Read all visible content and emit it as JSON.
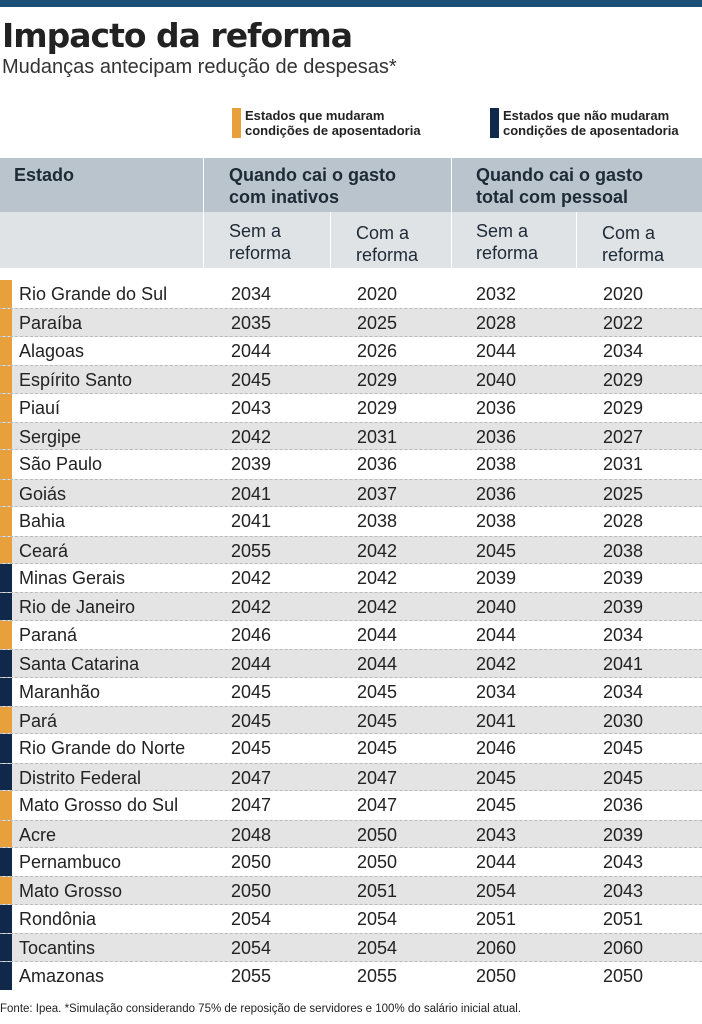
{
  "header": {
    "title": "Impacto da reforma",
    "subtitle": "Mudanças antecipam redução de despesas*"
  },
  "legend": [
    {
      "label": "Estados que mudaram condições de aposentadoria",
      "color": "#e8a03c"
    },
    {
      "label": "Estados que não mudaram condições de aposentadoria",
      "color": "#10294a"
    }
  ],
  "table": {
    "columns": [
      "Estado",
      "Quando cai o gasto com inativos",
      "Quando cai o gasto total com pessoal"
    ],
    "subcolumns": [
      "Sem a reforma",
      "Com a reforma",
      "Sem a reforma",
      "Com a reforma"
    ],
    "rows": [
      {
        "state": "Rio Grande do Sul",
        "color": "#e8a03c",
        "values": [
          2034,
          2020,
          2032,
          2020
        ]
      },
      {
        "state": "Paraíba",
        "color": "#e8a03c",
        "values": [
          2035,
          2025,
          2028,
          2022
        ]
      },
      {
        "state": "Alagoas",
        "color": "#e8a03c",
        "values": [
          2044,
          2026,
          2044,
          2034
        ]
      },
      {
        "state": "Espírito Santo",
        "color": "#e8a03c",
        "values": [
          2045,
          2029,
          2040,
          2029
        ]
      },
      {
        "state": "Piauí",
        "color": "#e8a03c",
        "values": [
          2043,
          2029,
          2036,
          2029
        ]
      },
      {
        "state": "Sergipe",
        "color": "#e8a03c",
        "values": [
          2042,
          2031,
          2036,
          2027
        ]
      },
      {
        "state": "São Paulo",
        "color": "#e8a03c",
        "values": [
          2039,
          2036,
          2038,
          2031
        ]
      },
      {
        "state": "Goiás",
        "color": "#e8a03c",
        "values": [
          2041,
          2037,
          2036,
          2025
        ]
      },
      {
        "state": "Bahia",
        "color": "#e8a03c",
        "values": [
          2041,
          2038,
          2038,
          2028
        ]
      },
      {
        "state": "Ceará",
        "color": "#e8a03c",
        "values": [
          2055,
          2042,
          2045,
          2038
        ]
      },
      {
        "state": "Minas Gerais",
        "color": "#10294a",
        "values": [
          2042,
          2042,
          2039,
          2039
        ]
      },
      {
        "state": "Rio de Janeiro",
        "color": "#10294a",
        "values": [
          2042,
          2042,
          2040,
          2039
        ]
      },
      {
        "state": "Paraná",
        "color": "#e8a03c",
        "values": [
          2046,
          2044,
          2044,
          2034
        ]
      },
      {
        "state": "Santa Catarina",
        "color": "#10294a",
        "values": [
          2044,
          2044,
          2042,
          2041
        ]
      },
      {
        "state": "Maranhão",
        "color": "#10294a",
        "values": [
          2045,
          2045,
          2034,
          2034
        ]
      },
      {
        "state": "Pará",
        "color": "#e8a03c",
        "values": [
          2045,
          2045,
          2041,
          2030
        ]
      },
      {
        "state": "Rio Grande do Norte",
        "color": "#10294a",
        "values": [
          2045,
          2045,
          2046,
          2045
        ]
      },
      {
        "state": "Distrito Federal",
        "color": "#10294a",
        "values": [
          2047,
          2047,
          2045,
          2045
        ]
      },
      {
        "state": "Mato Grosso do Sul",
        "color": "#e8a03c",
        "values": [
          2047,
          2047,
          2045,
          2036
        ]
      },
      {
        "state": "Acre",
        "color": "#e8a03c",
        "values": [
          2048,
          2050,
          2043,
          2039
        ]
      },
      {
        "state": "Pernambuco",
        "color": "#10294a",
        "values": [
          2050,
          2050,
          2044,
          2043
        ]
      },
      {
        "state": "Mato Grosso",
        "color": "#e8a03c",
        "values": [
          2050,
          2051,
          2054,
          2043
        ]
      },
      {
        "state": "Rondônia",
        "color": "#10294a",
        "values": [
          2054,
          2054,
          2051,
          2051
        ]
      },
      {
        "state": "Tocantins",
        "color": "#10294a",
        "values": [
          2054,
          2054,
          2060,
          2060
        ]
      },
      {
        "state": "Amazonas",
        "color": "#10294a",
        "values": [
          2055,
          2055,
          2050,
          2050
        ]
      }
    ]
  },
  "footer": {
    "source": "Fonte: Ipea. *Simulação considerando 75% de reposição de servidores e 100% do salário inicial atual."
  }
}
